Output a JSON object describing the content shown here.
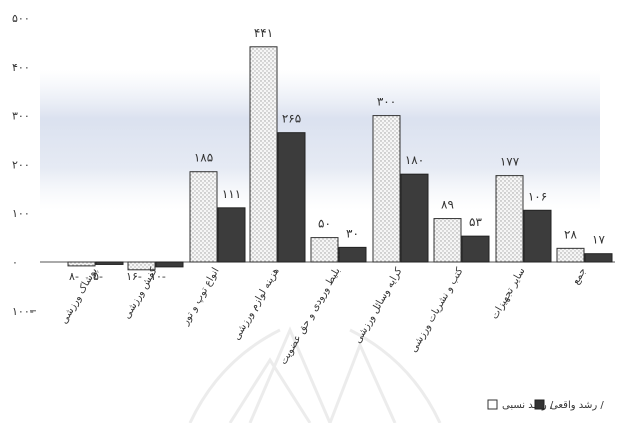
{
  "chart_data": {
    "type": "bar",
    "categories": [
      "پوشاک ورزشی",
      "کفش ورزشی",
      "انواع توپ و تور",
      "هزینه لوازم ورزشی",
      "بلیط ورودی و حق عضویت",
      "کرایه وسائل ورزشی",
      "کتب و نشریات ورزشی",
      "سایر تجهیزات",
      "جمع"
    ],
    "series": [
      {
        "name": "رشد نسبی",
        "color": "#f4f4f4",
        "pattern": "dotted",
        "values": [
          -8,
          -16,
          185,
          441,
          50,
          300,
          89,
          177,
          28
        ],
        "labels": [
          "۸-",
          "۱۶-",
          "۱۸۵",
          "۴۴۱",
          "۵۰",
          "۳۰۰",
          "۸۹",
          "۱۷۷",
          "۲۸"
        ]
      },
      {
        "name": "رشد واقعی",
        "color": "#3c3c3c",
        "pattern": "solid",
        "values": [
          -5,
          -10,
          111,
          265,
          30,
          180,
          53,
          106,
          17
        ],
        "labels": [
          "۵-",
          "۱۰-",
          "۱۱۱",
          "۲۶۵",
          "۳۰",
          "۱۸۰",
          "۵۳",
          "۱۰۶",
          "۱۷"
        ]
      }
    ],
    "ylim": [
      -100,
      500
    ],
    "yticks": [
      500,
      400,
      300,
      200,
      100,
      0,
      -100
    ],
    "ytick_labels": [
      "۵۰۰",
      "۴۰۰",
      "۳۰۰",
      "۲۰۰",
      "۱۰۰",
      "۰",
      "۱۰۰-"
    ],
    "legend": {
      "position": "bottom-right",
      "entries": [
        "رشد واقعی /",
        "رشد نسبی /"
      ]
    },
    "grid": false,
    "title": "",
    "xlabel": "",
    "ylabel": ""
  }
}
